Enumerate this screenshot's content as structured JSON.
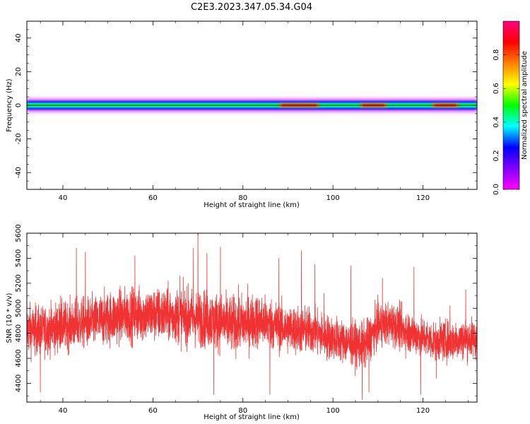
{
  "figure": {
    "title": "C2E3.2023.347.05.34.G04"
  },
  "chart_data": [
    {
      "type": "heatmap",
      "xlabel": "Height of straight line (km)",
      "ylabel": "Frequency (Hz)",
      "xlim": [
        32,
        132
      ],
      "ylim": [
        -50,
        50
      ],
      "x_ticks": [
        40,
        60,
        80,
        100,
        120
      ],
      "y_ticks": [
        -40,
        -20,
        0,
        20,
        40
      ],
      "colorbar": {
        "label": "Normalized spectral amplitude",
        "range": [
          0,
          1
        ],
        "ticks": [
          0.0,
          0.2,
          0.4,
          0.6,
          0.8
        ],
        "colormap": [
          "#ff00ff",
          "#8000ff",
          "#0000ff",
          "#00ffff",
          "#00ff00",
          "#ffff00",
          "#ff8000",
          "#ff0000",
          "#ff0080"
        ]
      },
      "signal_band": {
        "center_frequency_hz": 0,
        "half_width_hz": 2.5,
        "peak_segments_km": [
          [
            88,
            97
          ],
          [
            106,
            112
          ],
          [
            122,
            128
          ]
        ]
      }
    },
    {
      "type": "line",
      "xlabel": "Height of straight line (km)",
      "ylabel": "SNR (10 * v/v)",
      "xlim": [
        32,
        132
      ],
      "ylim": [
        4250,
        5600
      ],
      "x_ticks": [
        40,
        60,
        80,
        100,
        120
      ],
      "y_ticks": [
        4400,
        4600,
        4800,
        5000,
        5200,
        5400,
        5600
      ],
      "color": "#f03232",
      "series": [
        {
          "x": [
            32,
            35,
            38,
            41,
            44,
            47,
            50,
            53,
            56,
            59,
            62,
            65,
            68,
            71,
            74,
            77,
            80,
            83,
            86,
            89,
            92,
            95,
            98,
            101,
            104,
            107,
            110,
            113,
            116,
            119,
            122,
            125,
            128,
            131
          ],
          "y": [
            4830,
            4820,
            4840,
            4860,
            4880,
            4890,
            4920,
            4940,
            4950,
            4950,
            4950,
            4940,
            4930,
            4920,
            4900,
            4870,
            4880,
            4900,
            4880,
            4840,
            4830,
            4820,
            4780,
            4750,
            4720,
            4700,
            4860,
            4880,
            4820,
            4780,
            4740,
            4740,
            4750,
            4760
          ],
          "noise_amplitude": [
            180,
            170,
            170,
            170,
            180,
            180,
            190,
            190,
            190,
            190,
            190,
            190,
            200,
            200,
            200,
            200,
            200,
            190,
            180,
            170,
            170,
            160,
            160,
            150,
            150,
            160,
            150,
            150,
            150,
            140,
            140,
            140,
            140,
            140
          ],
          "spikes": [
            [
              35,
              4330
            ],
            [
              39.5,
              5100
            ],
            [
              43,
              5480
            ],
            [
              45,
              5450
            ],
            [
              56,
              5420
            ],
            [
              66,
              5260
            ],
            [
              69,
              5480
            ],
            [
              70,
              5610
            ],
            [
              72,
              5440
            ],
            [
              73.5,
              4310
            ],
            [
              75,
              5490
            ],
            [
              86,
              4310
            ],
            [
              88,
              5400
            ],
            [
              93,
              5460
            ],
            [
              96,
              5350
            ],
            [
              98,
              5120
            ],
            [
              104,
              5340
            ],
            [
              106.5,
              4270
            ],
            [
              108,
              4330
            ],
            [
              111,
              5240
            ],
            [
              118,
              5330
            ],
            [
              119.5,
              4310
            ],
            [
              123,
              4440
            ],
            [
              126,
              5020
            ],
            [
              129.5,
              5150
            ]
          ]
        }
      ]
    }
  ]
}
